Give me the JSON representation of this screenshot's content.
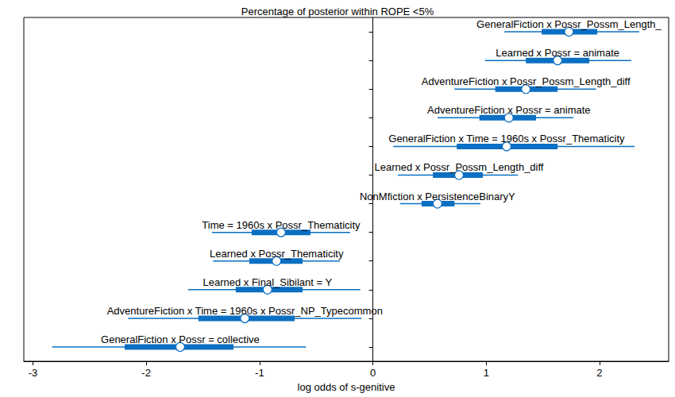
{
  "chart_data": {
    "type": "interval",
    "title": "Percentage of posterior within ROPE <5%",
    "x_label": "log odds of s-genitive",
    "categories": [
      "GeneralFiction x Possr_Possm_Length_",
      "Learned x Possr = animate",
      "AdventureFiction x Possr_Possm_Length_diff",
      "AdventureFiction x Possr = animate",
      "GeneralFiction x Time = 1960s x Possr_Thematicity",
      "Learned x Possr_Possm_Length_diff",
      "NonMfiction x PersistenceBinaryY",
      "Time = 1960s x Possr_Thematicity",
      "Learned x Possr_Thematicity",
      "Learned x Final_Sibilant = Y",
      "AdventureFiction x Time = 1960s x Possr_NP_Typecommon",
      "GeneralFiction x Possr = collective"
    ],
    "values": [
      1.73,
      1.63,
      1.35,
      1.2,
      1.18,
      0.76,
      0.57,
      -0.81,
      -0.85,
      -0.93,
      -1.13,
      -1.7
    ],
    "inner_low": [
      1.49,
      1.35,
      1.08,
      0.94,
      0.74,
      0.53,
      0.43,
      -1.07,
      -1.09,
      -1.21,
      -1.54,
      -2.19
    ],
    "inner_high": [
      1.98,
      1.91,
      1.63,
      1.44,
      1.63,
      0.97,
      0.72,
      -0.55,
      -0.62,
      -0.62,
      -0.69,
      -1.23
    ],
    "outer_low": [
      1.16,
      0.99,
      0.72,
      0.57,
      0.18,
      0.22,
      0.24,
      -1.42,
      -1.41,
      -1.63,
      -2.16,
      -2.83
    ],
    "outer_high": [
      2.35,
      2.28,
      1.97,
      1.77,
      2.31,
      1.28,
      0.95,
      -0.2,
      -0.29,
      -0.11,
      -0.1,
      -0.59
    ],
    "color": "#0b6fc3",
    "xlim": [
      -3.08,
      2.61
    ],
    "xticks": [
      -3,
      -2,
      -1,
      0,
      1,
      2
    ],
    "reference_line": 0,
    "grid": false,
    "tick_labels": "x"
  }
}
